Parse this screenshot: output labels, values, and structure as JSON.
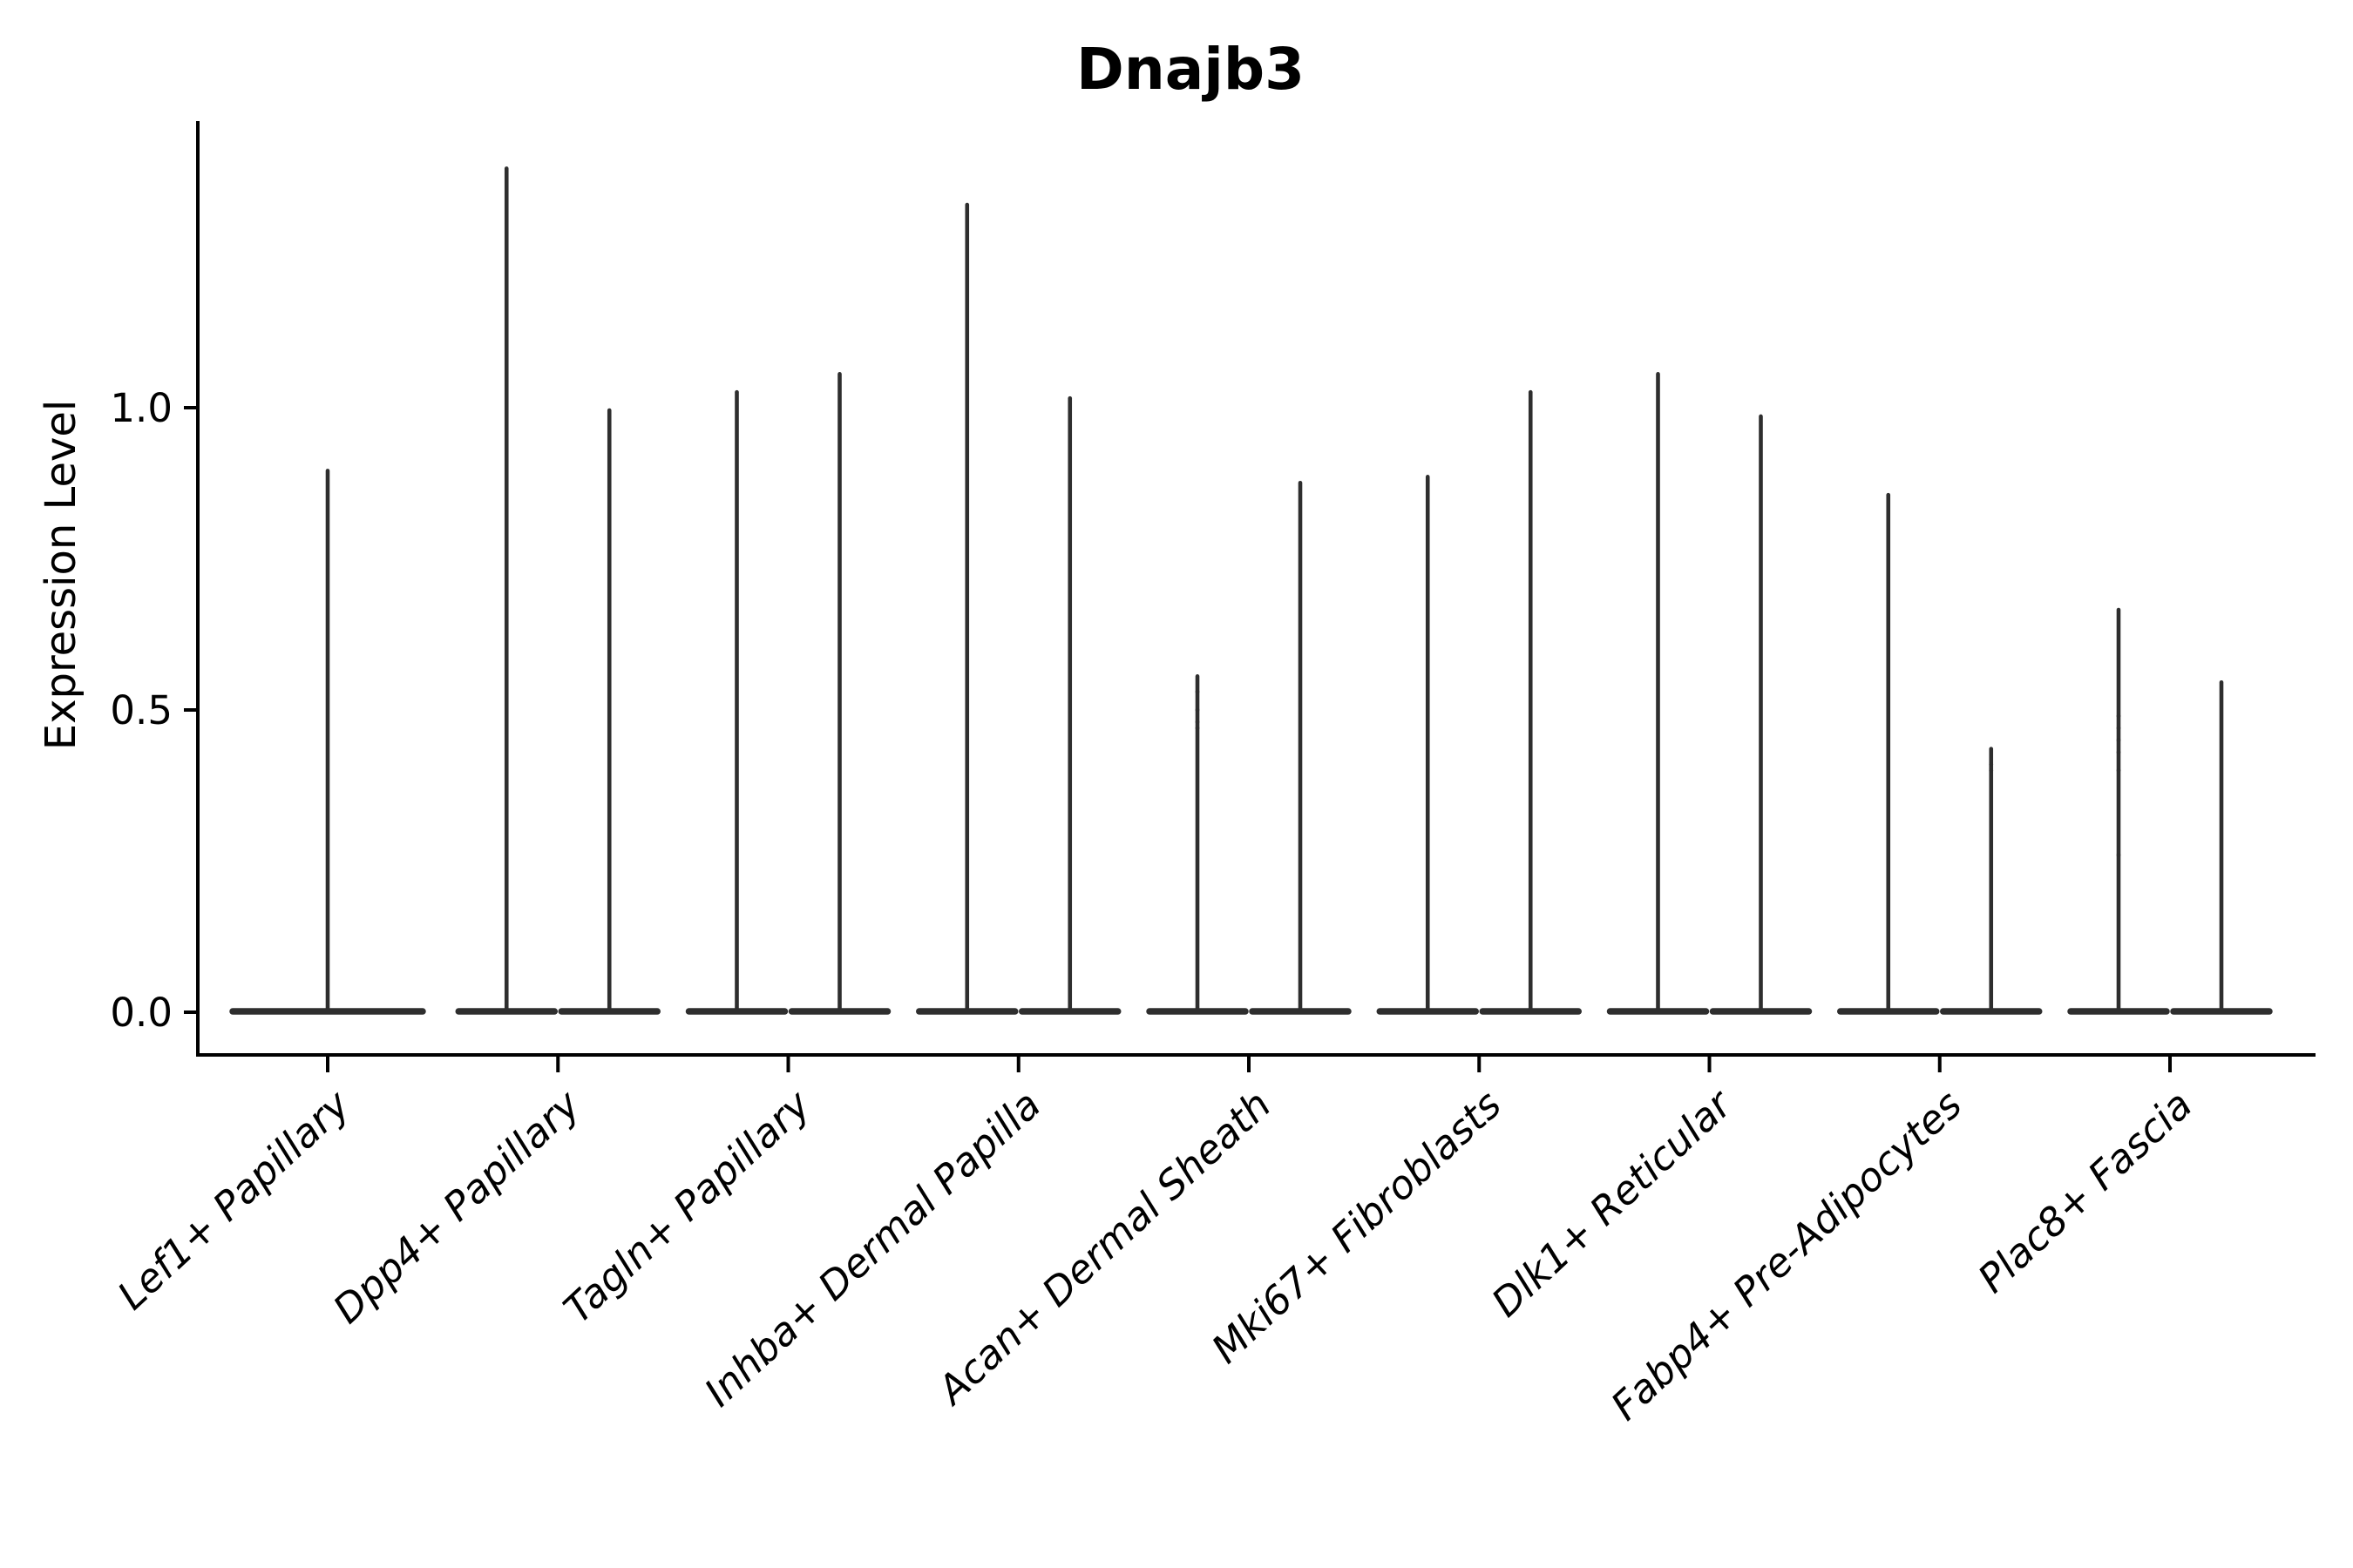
{
  "figure": {
    "title": "Dnajb3",
    "background": "#ffffff"
  },
  "chart_data": {
    "type": "violin",
    "title": "Dnajb3",
    "xlabel": "",
    "ylabel": "Expression Level",
    "ylim": [
      0,
      1.47
    ],
    "ytick_labels": [
      "0.0",
      "0.5",
      "1.0"
    ],
    "ytick_values": [
      0.0,
      0.5,
      1.0
    ],
    "grid": false,
    "legend": "none",
    "x_label_style": {
      "angle_deg": -43,
      "italic": true
    },
    "colors": {
      "violin": "#2e2e2e",
      "axis": "#000000",
      "text": "#000000"
    },
    "categories": [
      "Lef1+ Papillary",
      "Dpp4+ Papillary",
      "Tagln+ Papillary",
      "Inhba+ Dermal Papilla",
      "Acan+ Dermal Sheath",
      "Mki67+ Fibroblasts",
      "Dlk1+ Reticular",
      "Fabp4+ Pre-Adipocytes",
      "Plac8+ Fascia"
    ],
    "description": "Needle violins: dense flat base at expression 0 plus a thin spike up to the max expression value. Most categories contain two side-by-side violins; the first category has a single full-width violin.",
    "data": [
      {
        "category": "Lef1+ Papillary",
        "violins": [
          {
            "group": "single",
            "max": 0.9,
            "points": []
          }
        ]
      },
      {
        "category": "Dpp4+ Papillary",
        "violins": [
          {
            "group": "left",
            "max": 1.4,
            "points": []
          },
          {
            "group": "right",
            "max": 1.0,
            "points": []
          }
        ]
      },
      {
        "category": "Tagln+ Papillary",
        "violins": [
          {
            "group": "left",
            "max": 1.03,
            "points": []
          },
          {
            "group": "right",
            "max": 1.06,
            "points": []
          }
        ]
      },
      {
        "category": "Inhba+ Dermal Papilla",
        "violins": [
          {
            "group": "left",
            "max": 1.34,
            "points": []
          },
          {
            "group": "right",
            "max": 1.02,
            "points": []
          }
        ]
      },
      {
        "category": "Acan+ Dermal Sheath",
        "violins": [
          {
            "group": "left",
            "max": 0.56,
            "points": [
              0.47,
              0.48,
              0.5,
              0.53
            ]
          },
          {
            "group": "right",
            "max": 0.88,
            "points": []
          }
        ]
      },
      {
        "category": "Mki67+ Fibroblasts",
        "violins": [
          {
            "group": "left",
            "max": 0.89,
            "points": []
          },
          {
            "group": "right",
            "max": 1.03,
            "points": []
          }
        ]
      },
      {
        "category": "Dlk1+ Reticular",
        "violins": [
          {
            "group": "left",
            "max": 1.06,
            "points": []
          },
          {
            "group": "right",
            "max": 0.99,
            "points": []
          }
        ]
      },
      {
        "category": "Fabp4+ Pre-Adipocytes",
        "violins": [
          {
            "group": "left",
            "max": 0.86,
            "points": []
          },
          {
            "group": "right",
            "max": 0.44,
            "points": [
              0.4,
              0.41
            ]
          }
        ]
      },
      {
        "category": "Plac8+ Fascia",
        "violins": [
          {
            "group": "left",
            "max": 0.67,
            "points": [
              0.26,
              0.4,
              0.43,
              0.45,
              0.47,
              0.49
            ]
          },
          {
            "group": "right",
            "max": 0.55,
            "points": []
          }
        ]
      }
    ]
  }
}
